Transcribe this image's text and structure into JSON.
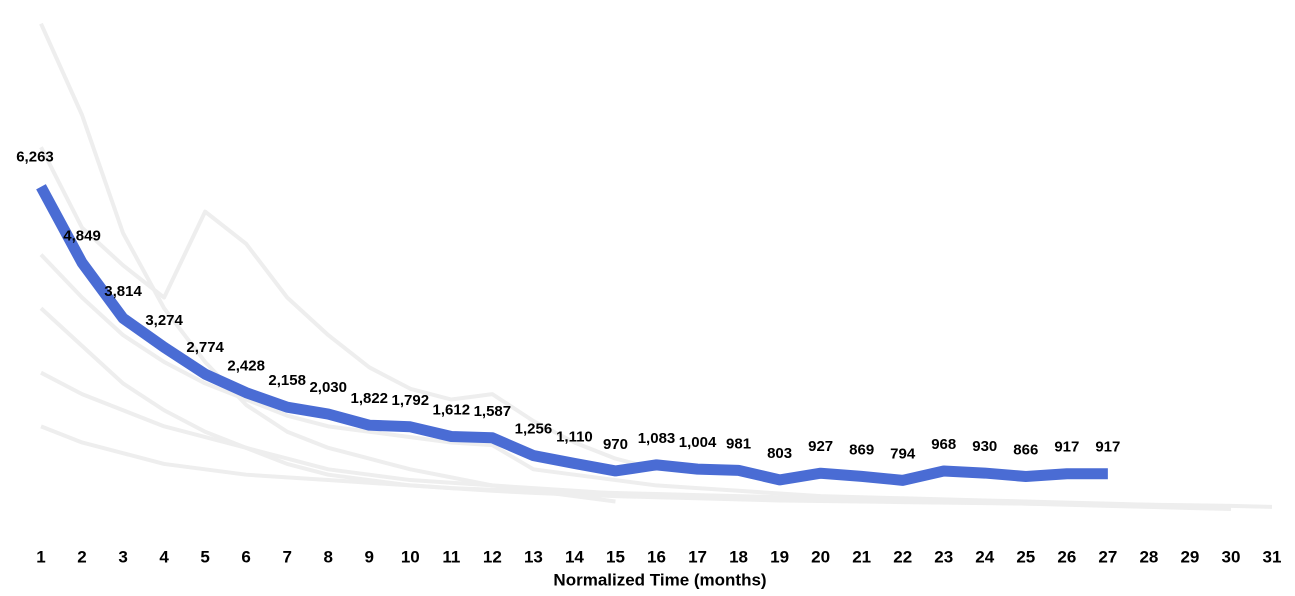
{
  "chart_data": {
    "type": "line",
    "x_label": "Normalized Time (months)",
    "categories": [
      "1",
      "2",
      "3",
      "4",
      "5",
      "6",
      "7",
      "8",
      "9",
      "10",
      "11",
      "12",
      "13",
      "14",
      "15",
      "16",
      "17",
      "18",
      "19",
      "20",
      "21",
      "22",
      "23",
      "24",
      "25",
      "26",
      "27",
      "28",
      "29",
      "30",
      "31"
    ],
    "ylim": [
      0,
      9500
    ],
    "series": [
      {
        "color": "#eeeeee",
        "values": [
          9300,
          7600,
          5400,
          4000,
          3000,
          2200,
          1700,
          1400,
          1200,
          1000,
          850,
          700,
          600,
          500,
          400,
          null,
          null,
          null,
          null,
          null,
          null,
          null,
          null,
          null,
          null,
          null,
          null,
          null,
          null,
          null,
          null
        ]
      },
      {
        "color": "#eeeeee",
        "values": [
          7000,
          5500,
          4800,
          4200,
          5800,
          5200,
          4200,
          3500,
          2900,
          2500,
          2300,
          2400,
          1900,
          1500,
          1200,
          1000,
          null,
          null,
          null,
          null,
          null,
          null,
          null,
          null,
          null,
          null,
          null,
          null,
          null,
          null,
          null
        ]
      },
      {
        "color": "#eeeeee",
        "values": [
          5000,
          4200,
          3500,
          3000,
          2600,
          2300,
          2000,
          1800,
          1700,
          1600,
          1500,
          1450,
          1000,
          900,
          800,
          700,
          650,
          600,
          550,
          500,
          480,
          460,
          440,
          420,
          400,
          380,
          360,
          340,
          320,
          null,
          null
        ]
      },
      {
        "color": "#eeeeee",
        "values": [
          4000,
          3300,
          2600,
          2100,
          1700,
          1400,
          1100,
          900,
          800,
          700,
          650,
          600,
          560,
          530,
          500,
          480,
          460,
          440,
          420,
          410,
          400,
          390,
          380,
          370,
          360,
          350,
          340,
          330,
          320,
          null,
          null
        ]
      },
      {
        "color": "#eeeeee",
        "values": [
          2800,
          2400,
          2100,
          1800,
          1600,
          1400,
          1200,
          1000,
          900,
          800,
          750,
          700,
          650,
          600,
          550,
          520,
          500,
          480,
          460,
          440,
          420,
          400,
          390,
          380,
          370,
          360,
          350,
          340,
          330,
          320,
          300
        ]
      },
      {
        "color": "#eeeeee",
        "values": [
          1800,
          1500,
          1300,
          1100,
          1000,
          900,
          850,
          800,
          750,
          700,
          650,
          620,
          600,
          580,
          560,
          540,
          520,
          500,
          480,
          460,
          440,
          420,
          400,
          380,
          360,
          340,
          320,
          300,
          280,
          260,
          null
        ]
      },
      {
        "color": "#4a6cd4",
        "values": [
          6263,
          4849,
          3814,
          3274,
          2774,
          2428,
          2158,
          2030,
          1822,
          1792,
          1612,
          1587,
          1256,
          1110,
          970,
          1083,
          1004,
          981,
          803,
          927,
          869,
          794,
          968,
          930,
          866,
          917,
          917,
          null,
          null,
          null,
          null
        ],
        "value_labels": [
          "6,263",
          "4,849",
          "3,814",
          "3,274",
          "2,774",
          "2,428",
          "2,158",
          "2,030",
          "1,822",
          "1,792",
          "1,612",
          "1,587",
          "1,256",
          "1,110",
          "970",
          "1,083",
          "1,004",
          "981",
          "803",
          "927",
          "869",
          "794",
          "968",
          "930",
          "866",
          "917",
          "917",
          null,
          null,
          null,
          null
        ]
      }
    ]
  }
}
